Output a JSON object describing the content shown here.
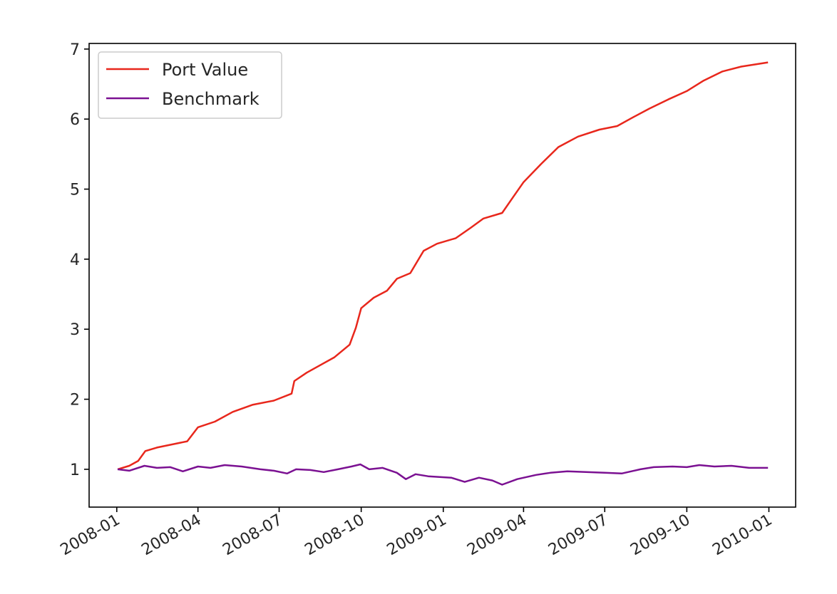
{
  "chart_data": {
    "type": "line",
    "title": "",
    "xlabel": "",
    "ylabel": "",
    "x_tick_labels": [
      "2008-01",
      "2008-04",
      "2008-07",
      "2008-10",
      "2009-01",
      "2009-04",
      "2009-07",
      "2009-10",
      "2010-01"
    ],
    "y_tick_labels": [
      "1",
      "2",
      "3",
      "4",
      "5",
      "6",
      "7"
    ],
    "xlim": [
      "2007-12-01",
      "2010-01-31"
    ],
    "ylim": [
      0.46,
      7.08
    ],
    "grid": false,
    "legend_position": "top-left",
    "series": [
      {
        "name": "Port Value",
        "color": "#e8271c",
        "points": [
          [
            "2008-01-02",
            1.0
          ],
          [
            "2008-01-15",
            1.05
          ],
          [
            "2008-01-25",
            1.12
          ],
          [
            "2008-02-02",
            1.26
          ],
          [
            "2008-02-15",
            1.31
          ],
          [
            "2008-03-01",
            1.35
          ],
          [
            "2008-03-20",
            1.4
          ],
          [
            "2008-04-01",
            1.6
          ],
          [
            "2008-04-20",
            1.68
          ],
          [
            "2008-05-10",
            1.82
          ],
          [
            "2008-06-01",
            1.92
          ],
          [
            "2008-06-25",
            1.98
          ],
          [
            "2008-07-15",
            2.08
          ],
          [
            "2008-07-18",
            2.26
          ],
          [
            "2008-08-01",
            2.38
          ],
          [
            "2008-09-01",
            2.6
          ],
          [
            "2008-09-18",
            2.78
          ],
          [
            "2008-09-25",
            3.02
          ],
          [
            "2008-10-01",
            3.3
          ],
          [
            "2008-10-15",
            3.45
          ],
          [
            "2008-10-30",
            3.55
          ],
          [
            "2008-11-10",
            3.72
          ],
          [
            "2008-11-25",
            3.8
          ],
          [
            "2008-12-10",
            4.12
          ],
          [
            "2008-12-25",
            4.22
          ],
          [
            "2009-01-15",
            4.3
          ],
          [
            "2009-02-01",
            4.45
          ],
          [
            "2009-02-15",
            4.58
          ],
          [
            "2009-03-08",
            4.66
          ],
          [
            "2009-03-20",
            4.88
          ],
          [
            "2009-04-01",
            5.1
          ],
          [
            "2009-04-20",
            5.35
          ],
          [
            "2009-05-10",
            5.6
          ],
          [
            "2009-06-01",
            5.75
          ],
          [
            "2009-06-25",
            5.85
          ],
          [
            "2009-07-15",
            5.9
          ],
          [
            "2009-08-01",
            6.02
          ],
          [
            "2009-08-20",
            6.15
          ],
          [
            "2009-09-10",
            6.28
          ],
          [
            "2009-10-01",
            6.4
          ],
          [
            "2009-10-20",
            6.55
          ],
          [
            "2009-11-10",
            6.68
          ],
          [
            "2009-12-01",
            6.75
          ],
          [
            "2009-12-31",
            6.81
          ]
        ]
      },
      {
        "name": "Benchmark",
        "color": "#7b1192",
        "points": [
          [
            "2008-01-02",
            1.0
          ],
          [
            "2008-01-15",
            0.98
          ],
          [
            "2008-02-01",
            1.05
          ],
          [
            "2008-02-15",
            1.02
          ],
          [
            "2008-03-01",
            1.03
          ],
          [
            "2008-03-15",
            0.97
          ],
          [
            "2008-04-01",
            1.04
          ],
          [
            "2008-04-15",
            1.02
          ],
          [
            "2008-05-01",
            1.06
          ],
          [
            "2008-05-20",
            1.04
          ],
          [
            "2008-06-10",
            1.0
          ],
          [
            "2008-06-25",
            0.98
          ],
          [
            "2008-07-10",
            0.94
          ],
          [
            "2008-07-20",
            1.0
          ],
          [
            "2008-08-05",
            0.99
          ],
          [
            "2008-08-20",
            0.96
          ],
          [
            "2008-09-05",
            1.0
          ],
          [
            "2008-09-20",
            1.04
          ],
          [
            "2008-09-30",
            1.07
          ],
          [
            "2008-10-10",
            1.0
          ],
          [
            "2008-10-25",
            1.02
          ],
          [
            "2008-11-10",
            0.95
          ],
          [
            "2008-11-20",
            0.86
          ],
          [
            "2008-12-01",
            0.93
          ],
          [
            "2008-12-15",
            0.9
          ],
          [
            "2009-01-10",
            0.88
          ],
          [
            "2009-01-25",
            0.82
          ],
          [
            "2009-02-10",
            0.88
          ],
          [
            "2009-02-25",
            0.84
          ],
          [
            "2009-03-08",
            0.78
          ],
          [
            "2009-03-25",
            0.86
          ],
          [
            "2009-04-15",
            0.92
          ],
          [
            "2009-05-01",
            0.95
          ],
          [
            "2009-05-20",
            0.97
          ],
          [
            "2009-06-10",
            0.96
          ],
          [
            "2009-07-01",
            0.95
          ],
          [
            "2009-07-20",
            0.94
          ],
          [
            "2009-08-10",
            1.0
          ],
          [
            "2009-08-25",
            1.03
          ],
          [
            "2009-09-15",
            1.04
          ],
          [
            "2009-10-01",
            1.03
          ],
          [
            "2009-10-15",
            1.06
          ],
          [
            "2009-11-01",
            1.04
          ],
          [
            "2009-11-20",
            1.05
          ],
          [
            "2009-12-10",
            1.02
          ],
          [
            "2009-12-31",
            1.02
          ]
        ]
      }
    ]
  }
}
